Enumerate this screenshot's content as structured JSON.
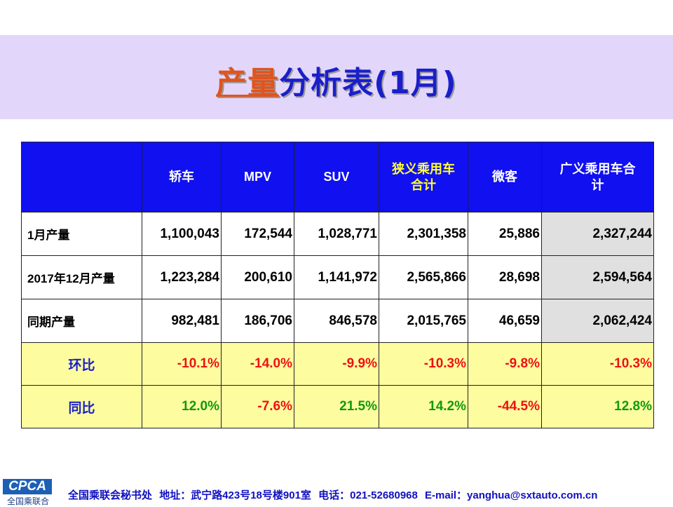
{
  "title": {
    "part1": "产量",
    "part2": "分析表(1月)"
  },
  "table": {
    "headers": [
      "",
      "轿车",
      "MPV",
      "SUV",
      "狭义乘用车\n合计",
      "微客",
      "广义乘用车合\n计"
    ],
    "rows": [
      {
        "label": "1月产量",
        "values": [
          "1,100,043",
          "172,544",
          "1,028,771",
          "2,301,358",
          "25,886",
          "2,327,244"
        ]
      },
      {
        "label": "2017年12月产量",
        "values": [
          "1,223,284",
          "200,610",
          "1,141,972",
          "2,565,866",
          "28,698",
          "2,594,564"
        ]
      },
      {
        "label": "同期产量",
        "values": [
          "982,481",
          "186,706",
          "846,578",
          "2,015,765",
          "46,659",
          "2,062,424"
        ]
      },
      {
        "label": "环比",
        "values": [
          "-10.1%",
          "-14.0%",
          "-9.9%",
          "-10.3%",
          "-9.8%",
          "-10.3%"
        ]
      },
      {
        "label": "同比",
        "values": [
          "12.0%",
          "-7.6%",
          "21.5%",
          "14.2%",
          "-44.5%",
          "12.8%"
        ]
      }
    ]
  },
  "footer": {
    "logo": "CPCA",
    "logo_sub": "全国乘联合",
    "org": "全国乘联会秘书处",
    "address": "地址：武宁路423号18号楼901室",
    "phone": "电话：021-52680968",
    "email": "E-mail：yanghua@sxtauto.com.cn"
  },
  "colors": {
    "banner": "#e3d6fb",
    "header": "#1010f0",
    "highlight_row": "#fdfda0",
    "negative": "#ee1111",
    "positive": "#119911"
  }
}
